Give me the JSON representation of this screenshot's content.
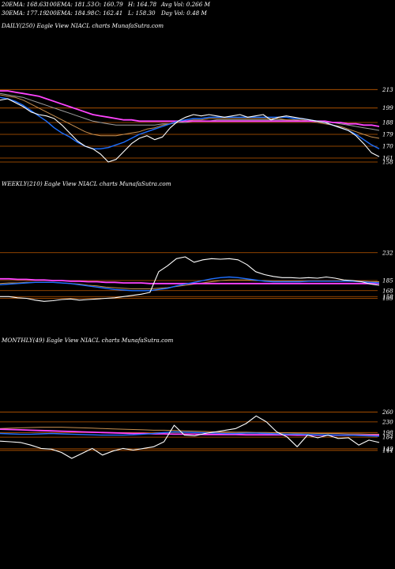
{
  "header": {
    "ema20": "20EMA: 168.63",
    "ema100": "100EMA: 181.53",
    "open": "O: 160.79",
    "high": "H: 164.78",
    "avg_vol": "Avg Vol: 0.266  M",
    "ema30": "30EMA: 177.19",
    "ema200": "200EMA: 184.98",
    "close": "C: 162.41",
    "low": "L: 158.30",
    "day_vol": "Day Vol: 0.48  M"
  },
  "colors": {
    "background": "#000000",
    "price": "#ffffff",
    "ema_short": "#1e6fff",
    "ema_mid": "#c89050",
    "ema_long": "#a0a0a0",
    "ema_200": "#ff44ff",
    "level_line": "#c05a00"
  },
  "chart_data": [
    {
      "type": "line",
      "panel": "daily",
      "title": "DAILY(250) Eagle  View  NIACL  charts MunafaSutra.com",
      "y_ticks": [
        "213",
        "199",
        "188",
        "179",
        "170",
        "161",
        "158"
      ],
      "series": [
        {
          "key": "price",
          "values": [
            205,
            206,
            203,
            200,
            196,
            194,
            193,
            191,
            186,
            180,
            174,
            170,
            168,
            164,
            158,
            160,
            166,
            172,
            176,
            178,
            175,
            177,
            184,
            189,
            192,
            194,
            193,
            194,
            193,
            192,
            193,
            194,
            192,
            193,
            194,
            190,
            192,
            193,
            192,
            191,
            190,
            189,
            188,
            186,
            184,
            182,
            178,
            172,
            165,
            162
          ]
        },
        {
          "key": "ema_short",
          "values": [
            207,
            206,
            204,
            201,
            197,
            193,
            189,
            184,
            180,
            177,
            173,
            170,
            168,
            168,
            169,
            171,
            173,
            176,
            179,
            181,
            183,
            185,
            187,
            189,
            190,
            191,
            191,
            192,
            192,
            192,
            192,
            192,
            192,
            192,
            192,
            192,
            192,
            192,
            191,
            191,
            190,
            189,
            188,
            186,
            184,
            182,
            179,
            175,
            171,
            168
          ]
        },
        {
          "key": "ema_mid",
          "values": [
            209,
            208,
            207,
            205,
            202,
            199,
            196,
            193,
            190,
            187,
            184,
            181,
            179,
            178,
            178,
            178,
            179,
            180,
            181,
            183,
            184,
            186,
            187,
            188,
            189,
            190,
            190,
            191,
            191,
            191,
            191,
            191,
            191,
            191,
            191,
            191,
            191,
            190,
            190,
            190,
            189,
            188,
            187,
            186,
            185,
            183,
            181,
            179,
            177,
            176
          ]
        },
        {
          "key": "ema_long",
          "values": [
            210,
            209,
            208,
            207,
            205,
            203,
            201,
            199,
            197,
            195,
            193,
            191,
            189,
            188,
            187,
            186,
            186,
            186,
            186,
            186,
            186,
            187,
            187,
            188,
            188,
            189,
            189,
            189,
            190,
            190,
            190,
            190,
            190,
            190,
            190,
            190,
            190,
            190,
            190,
            189,
            189,
            189,
            188,
            188,
            187,
            186,
            185,
            184,
            183,
            182
          ]
        },
        {
          "key": "ema_200",
          "values": [
            212,
            212,
            211,
            210,
            209,
            208,
            206,
            204,
            202,
            200,
            198,
            196,
            194,
            193,
            192,
            191,
            190,
            190,
            189,
            189,
            189,
            189,
            189,
            189,
            189,
            189,
            189,
            189,
            189,
            189,
            189,
            189,
            189,
            189,
            189,
            189,
            189,
            189,
            189,
            189,
            189,
            189,
            189,
            188,
            188,
            187,
            187,
            186,
            186,
            185
          ]
        }
      ],
      "ylim": [
        152,
        218
      ]
    },
    {
      "type": "line",
      "panel": "weekly",
      "title": "WEEKLY(210) Eagle  View  NIACL  charts MunafaSutra.com",
      "y_ticks": [
        "232",
        "185",
        "168",
        "158",
        "155"
      ],
      "series": [
        {
          "key": "price",
          "values": [
            158,
            158,
            156,
            155,
            152,
            150,
            151,
            153,
            154,
            152,
            153,
            154,
            155,
            156,
            158,
            160,
            162,
            165,
            200,
            210,
            222,
            225,
            216,
            220,
            222,
            221,
            222,
            220,
            212,
            200,
            195,
            192,
            190,
            190,
            189,
            190,
            189,
            191,
            189,
            186,
            185,
            183,
            179,
            177
          ]
        },
        {
          "key": "ema_short",
          "values": [
            178,
            179,
            180,
            181,
            182,
            182,
            182,
            181,
            180,
            178,
            176,
            174,
            172,
            170,
            169,
            168,
            168,
            168,
            170,
            172,
            176,
            179,
            182,
            185,
            188,
            190,
            191,
            190,
            188,
            186,
            184,
            183,
            183,
            183,
            183,
            184,
            184,
            184,
            184,
            184,
            184,
            183,
            182,
            181
          ]
        },
        {
          "key": "ema_mid",
          "values": [
            180,
            181,
            181,
            182,
            182,
            182,
            182,
            181,
            180,
            179,
            177,
            176,
            174,
            173,
            172,
            171,
            171,
            171,
            172,
            173,
            175,
            177,
            179,
            181,
            183,
            185,
            186,
            186,
            186,
            185,
            185,
            184,
            184,
            184,
            184,
            184,
            184,
            184,
            184,
            184,
            184,
            184,
            183,
            183
          ]
        },
        {
          "key": "ema_200",
          "values": [
            188,
            188,
            187,
            187,
            186,
            186,
            185,
            185,
            184,
            184,
            183,
            183,
            182,
            182,
            181,
            181,
            181,
            180,
            180,
            180,
            180,
            180,
            180,
            180,
            180,
            180,
            180,
            180,
            180,
            180,
            180,
            180,
            180,
            180,
            180,
            180,
            180,
            180,
            180,
            180,
            180,
            180,
            180,
            180
          ]
        }
      ],
      "ylim": [
        145,
        245
      ]
    },
    {
      "type": "line",
      "panel": "monthly",
      "title": "MONTHLY(49) Eagle  View  NIACL  charts MunafaSutra.com",
      "y_ticks": [
        "260",
        "230",
        "198",
        "184",
        "149",
        "144"
      ],
      "series": [
        {
          "key": "price",
          "values": [
            172,
            170,
            168,
            160,
            150,
            148,
            138,
            120,
            135,
            150,
            130,
            142,
            150,
            145,
            150,
            155,
            170,
            220,
            190,
            188,
            195,
            200,
            205,
            210,
            225,
            248,
            230,
            200,
            185,
            155,
            190,
            182,
            190,
            180,
            182,
            160,
            175,
            168
          ]
        },
        {
          "key": "ema_short",
          "values": [
            195,
            194,
            193,
            193,
            194,
            195,
            194,
            193,
            192,
            191,
            190,
            190,
            190,
            191,
            193,
            195,
            198,
            200,
            199,
            198,
            197,
            196,
            195,
            195,
            196,
            196,
            195,
            194,
            193,
            193,
            192,
            191,
            191,
            190,
            190,
            189,
            188,
            187
          ]
        },
        {
          "key": "ema_mid",
          "values": [
            210,
            211,
            212,
            213,
            214,
            214,
            214,
            213,
            212,
            211,
            210,
            209,
            208,
            207,
            206,
            205,
            205,
            204,
            203,
            202,
            201,
            200,
            200,
            199,
            199,
            198,
            198,
            197,
            197,
            196,
            196,
            195,
            195,
            195,
            194,
            194,
            193,
            193
          ]
        },
        {
          "key": "ema_200",
          "values": [
            208,
            207,
            206,
            205,
            204,
            203,
            202,
            201,
            200,
            199,
            198,
            197,
            196,
            195,
            195,
            194,
            194,
            193,
            193,
            193,
            192,
            192,
            192,
            192,
            191,
            191,
            191,
            191,
            191,
            190,
            190,
            190,
            190,
            190,
            190,
            190,
            190,
            190
          ]
        }
      ],
      "ylim": [
        120,
        275
      ]
    }
  ]
}
